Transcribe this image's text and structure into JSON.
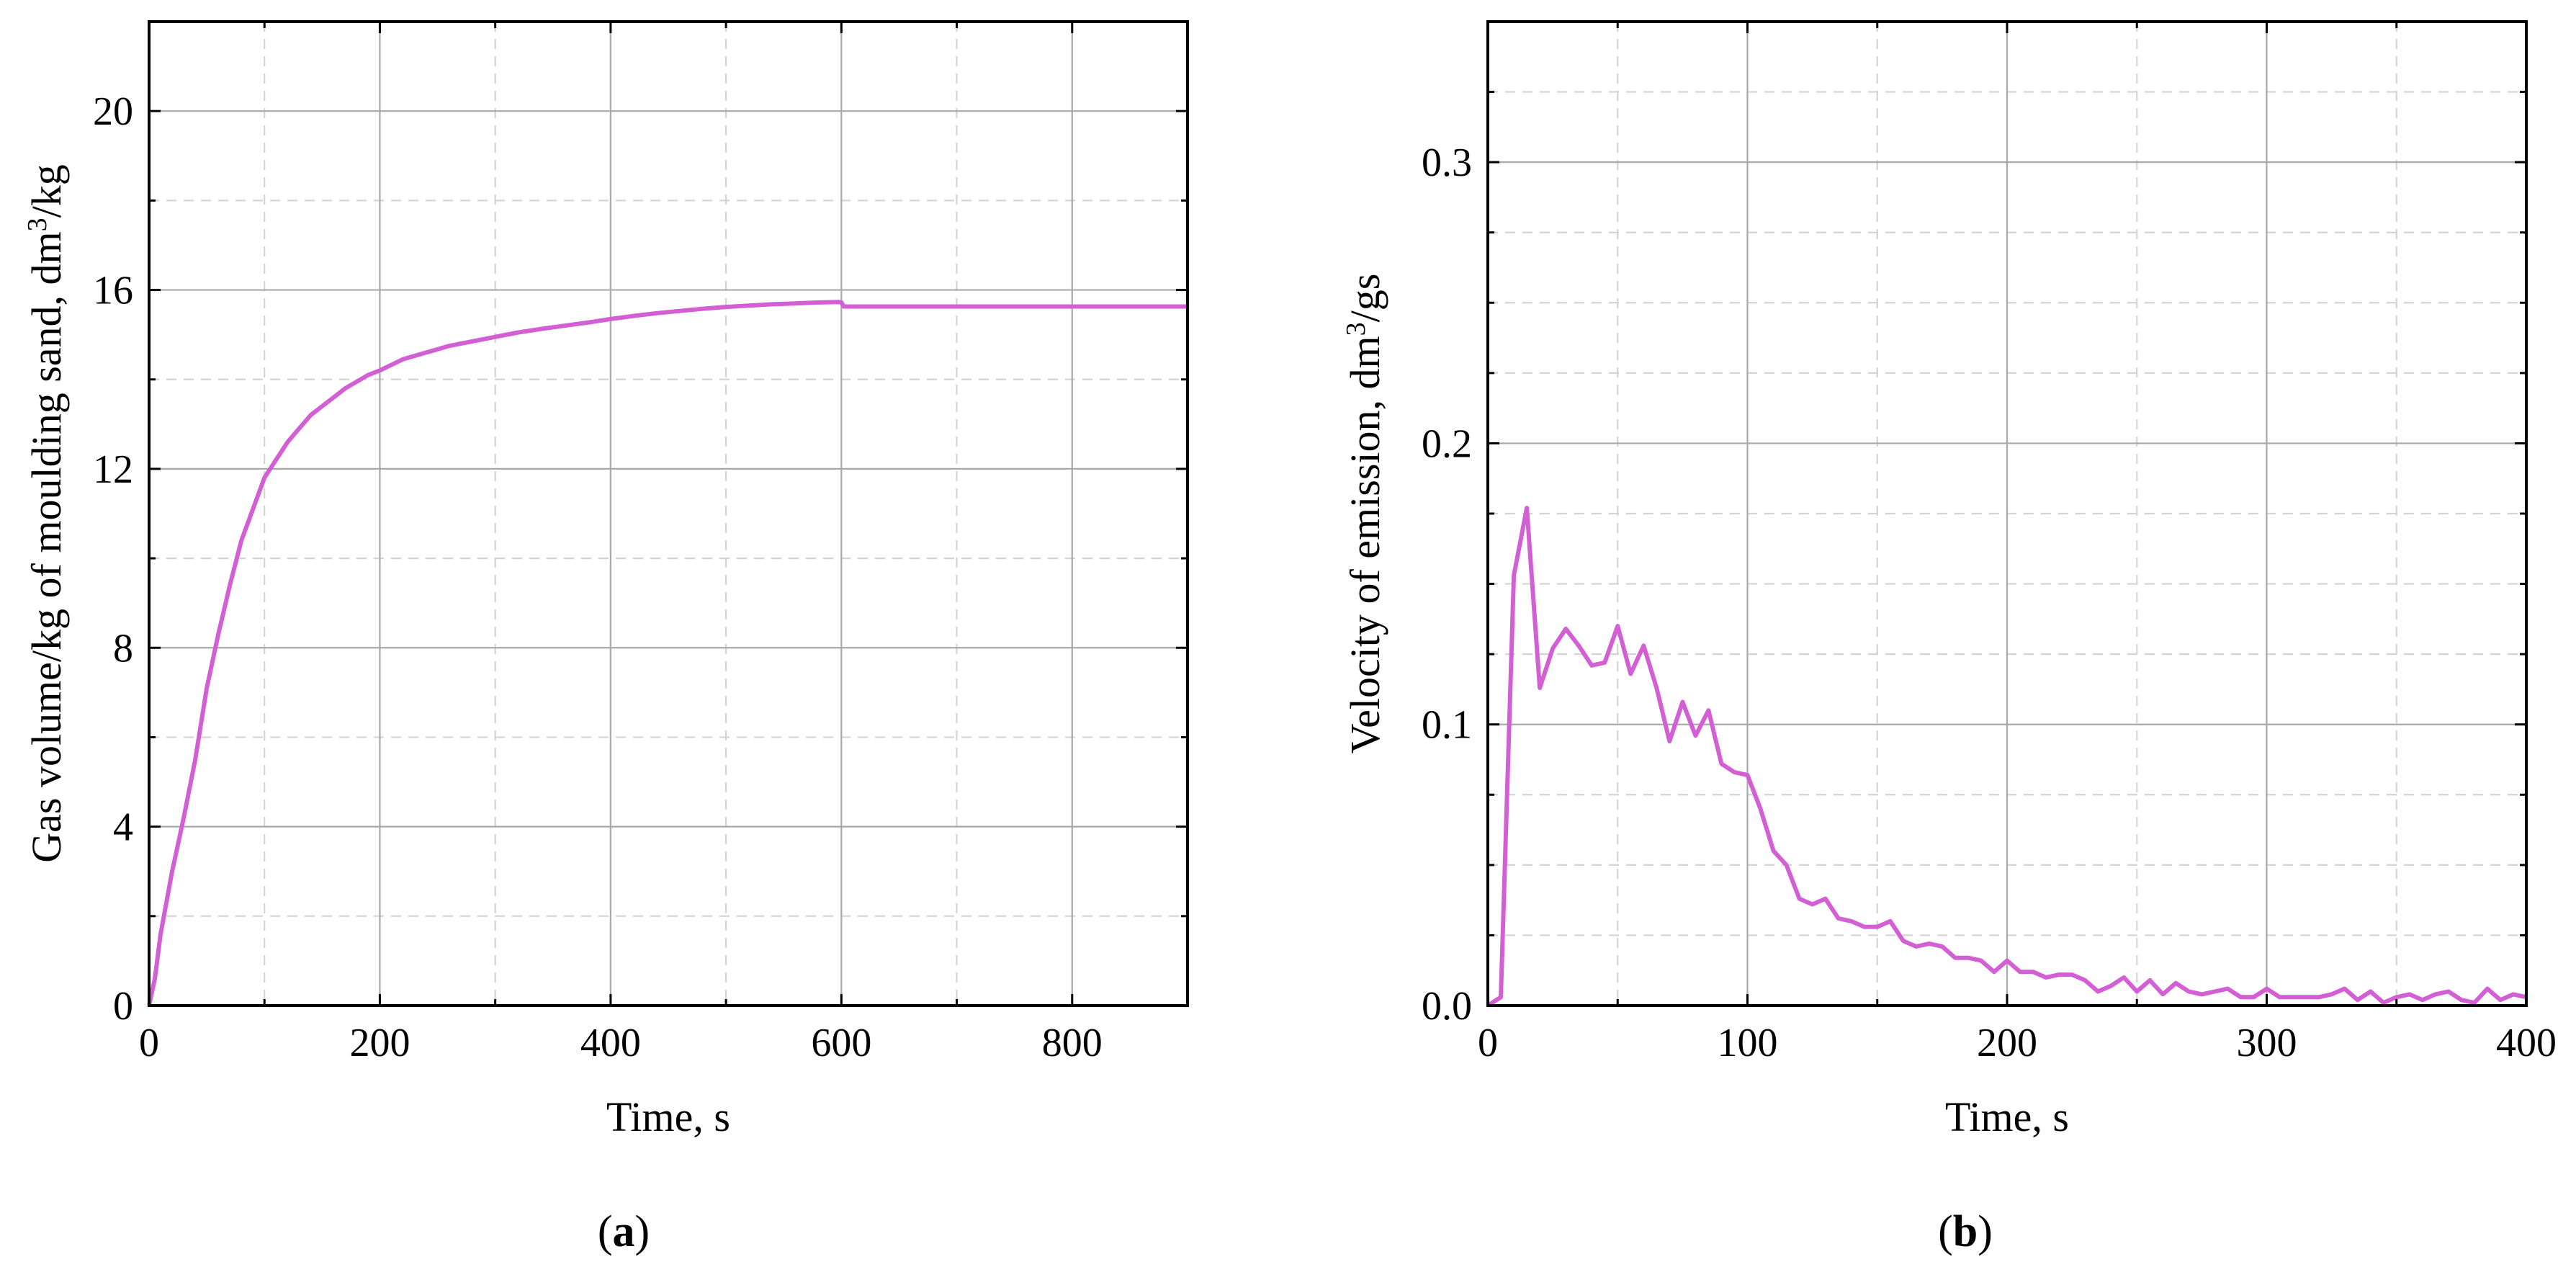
{
  "chart_data": [
    {
      "id": "a",
      "type": "line",
      "panel_label": "a",
      "title": "",
      "xlabel": "Time, s",
      "ylabel_prefix": "Gas volume/kg of moulding sand, dm",
      "ylabel_sup": "3",
      "ylabel_suffix": "/kg",
      "xlim": [
        0,
        900
      ],
      "ylim": [
        0,
        22
      ],
      "xticks": [
        0,
        200,
        400,
        600,
        800
      ],
      "yticks": [
        0,
        4,
        8,
        12,
        16,
        20
      ],
      "xminor": [
        100,
        300,
        500,
        700
      ],
      "yminor": [
        2,
        6,
        10,
        14,
        18
      ],
      "line_color": "#d35fd4",
      "series": [
        {
          "name": "gas volume",
          "x": [
            0,
            5,
            10,
            15,
            20,
            25,
            30,
            40,
            50,
            60,
            70,
            80,
            90,
            100,
            110,
            120,
            130,
            140,
            150,
            160,
            170,
            180,
            190,
            200,
            220,
            240,
            260,
            280,
            300,
            320,
            340,
            360,
            380,
            400,
            420,
            440,
            460,
            480,
            500,
            520,
            540,
            560,
            580,
            598,
            600,
            602,
            650,
            700,
            750,
            800,
            850,
            900
          ],
          "y": [
            0,
            0.6,
            1.6,
            2.3,
            3.0,
            3.6,
            4.2,
            5.5,
            7.1,
            8.3,
            9.4,
            10.4,
            11.1,
            11.8,
            12.2,
            12.6,
            12.9,
            13.2,
            13.4,
            13.6,
            13.8,
            13.95,
            14.1,
            14.2,
            14.45,
            14.6,
            14.75,
            14.85,
            14.95,
            15.05,
            15.13,
            15.2,
            15.27,
            15.35,
            15.42,
            15.48,
            15.53,
            15.58,
            15.62,
            15.65,
            15.68,
            15.7,
            15.72,
            15.73,
            15.72,
            15.63,
            15.63,
            15.63,
            15.63,
            15.63,
            15.63,
            15.63
          ]
        }
      ]
    },
    {
      "id": "b",
      "type": "line",
      "panel_label": "b",
      "title": "",
      "xlabel": "Time, s",
      "ylabel_prefix": "Velocity of emission, dm",
      "ylabel_sup": "3",
      "ylabel_suffix": "/gs",
      "xlim": [
        0,
        400
      ],
      "ylim": [
        0,
        0.35
      ],
      "xticks": [
        0,
        100,
        200,
        300,
        400
      ],
      "ytick_values": [
        0,
        0.1,
        0.2,
        0.3
      ],
      "ytick_labels": [
        "0.0",
        "0.1",
        "0.2",
        "0.3"
      ],
      "xminor": [
        50,
        150,
        250,
        350
      ],
      "yminor": [
        0.025,
        0.05,
        0.075,
        0.125,
        0.15,
        0.175,
        0.225,
        0.25,
        0.275,
        0.325
      ],
      "line_color": "#d35fd4",
      "series": [
        {
          "name": "velocity of emission",
          "x": [
            0,
            5,
            10,
            15,
            20,
            25,
            30,
            35,
            40,
            45,
            50,
            55,
            60,
            65,
            70,
            75,
            80,
            85,
            90,
            95,
            100,
            105,
            110,
            115,
            120,
            125,
            130,
            135,
            140,
            145,
            150,
            155,
            160,
            165,
            170,
            175,
            180,
            185,
            190,
            195,
            200,
            205,
            210,
            215,
            220,
            225,
            230,
            235,
            240,
            245,
            250,
            255,
            260,
            265,
            270,
            275,
            280,
            285,
            290,
            295,
            300,
            305,
            310,
            315,
            320,
            325,
            330,
            335,
            340,
            345,
            350,
            355,
            360,
            365,
            370,
            375,
            380,
            385,
            390,
            395,
            400
          ],
          "y": [
            0.0,
            0.003,
            0.153,
            0.177,
            0.113,
            0.127,
            0.134,
            0.128,
            0.121,
            0.122,
            0.135,
            0.118,
            0.128,
            0.113,
            0.094,
            0.108,
            0.096,
            0.105,
            0.086,
            0.083,
            0.082,
            0.07,
            0.055,
            0.05,
            0.038,
            0.036,
            0.038,
            0.031,
            0.03,
            0.028,
            0.028,
            0.03,
            0.023,
            0.021,
            0.022,
            0.021,
            0.017,
            0.017,
            0.016,
            0.012,
            0.016,
            0.012,
            0.012,
            0.01,
            0.011,
            0.011,
            0.009,
            0.005,
            0.007,
            0.01,
            0.005,
            0.009,
            0.004,
            0.008,
            0.005,
            0.004,
            0.005,
            0.006,
            0.003,
            0.003,
            0.006,
            0.003,
            0.003,
            0.003,
            0.003,
            0.004,
            0.006,
            0.002,
            0.005,
            0.001,
            0.003,
            0.004,
            0.002,
            0.004,
            0.005,
            0.002,
            0.001,
            0.006,
            0.002,
            0.004,
            0.003
          ]
        }
      ]
    }
  ]
}
